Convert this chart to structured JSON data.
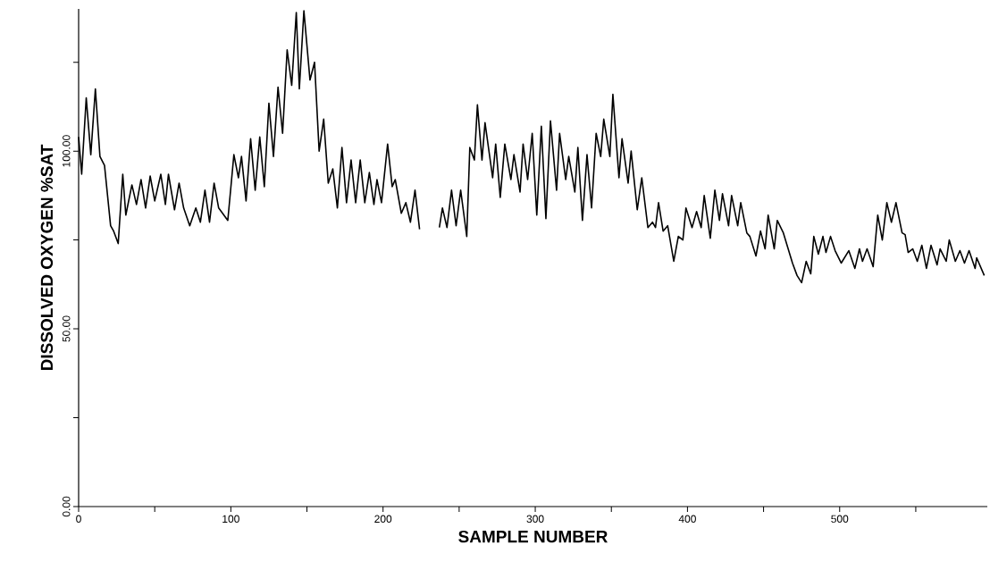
{
  "chart_data": {
    "type": "line",
    "xlabel": "SAMPLE NUMBER",
    "ylabel": "DISSOLVED OXYGEN %SAT",
    "xlim": [
      0,
      597
    ],
    "ylim": [
      0,
      140
    ],
    "xticks": [
      0,
      {
        "value": 50,
        "label": null
      },
      100,
      {
        "value": 150,
        "label": null
      },
      200,
      {
        "value": 250,
        "label": null
      },
      300,
      {
        "value": 350,
        "label": null
      },
      400,
      {
        "value": 450,
        "label": null
      },
      500,
      {
        "value": 550,
        "label": null
      }
    ],
    "yticks": [
      {
        "value": 0,
        "label": "0.00"
      },
      {
        "value": 25,
        "label": null
      },
      {
        "value": 50,
        "label": "50.00"
      },
      {
        "value": 75,
        "label": null
      },
      {
        "value": 100,
        "label": "100.00"
      },
      {
        "value": 125,
        "label": null
      }
    ],
    "grid": false,
    "marker": "none",
    "line_style": "solid",
    "series": [
      {
        "color": "#000000",
        "x": [
          0,
          2,
          5,
          8,
          11,
          14,
          17,
          21,
          23,
          26,
          29,
          31,
          35,
          38,
          41,
          44,
          47,
          50,
          54,
          57,
          59,
          63,
          66,
          69,
          73,
          77,
          80,
          83,
          86,
          89,
          92,
          98,
          102,
          105,
          107,
          110,
          113,
          116,
          119,
          122,
          125,
          128,
          131,
          134,
          137,
          140,
          143,
          145,
          148,
          152,
          155,
          158,
          161,
          164,
          167,
          170,
          173,
          176,
          179,
          182,
          185,
          188,
          191,
          194,
          196,
          199,
          203,
          206,
          208,
          212,
          215,
          218,
          221,
          224,
          230,
          237,
          239,
          242,
          245,
          248,
          251,
          255,
          257,
          260,
          262,
          265,
          267,
          272,
          274,
          277,
          280,
          284,
          286,
          290,
          292,
          295,
          298,
          301,
          304,
          307,
          310,
          314,
          316,
          320,
          322,
          326,
          328,
          331,
          334,
          337,
          340,
          343,
          345,
          349,
          351,
          355,
          357,
          361,
          363,
          367,
          370,
          374,
          377,
          379,
          381,
          384,
          387,
          391,
          394,
          397,
          399,
          403,
          406,
          409,
          411,
          415,
          418,
          421,
          423,
          427,
          429,
          433,
          435,
          439,
          441,
          445,
          448,
          451,
          453,
          457,
          459,
          463,
          469,
          472,
          475,
          478,
          481,
          483,
          486,
          489,
          491,
          494,
          497,
          501,
          506,
          510,
          513,
          515,
          518,
          522,
          525,
          528,
          531,
          534,
          537,
          541,
          543,
          545,
          548,
          551,
          554,
          557,
          560,
          564,
          566,
          570,
          572,
          576,
          579,
          582,
          585,
          589,
          590,
          595
        ],
        "values": [
          104,
          93.5,
          115,
          99,
          117.5,
          98.5,
          96,
          79,
          77.5,
          74,
          93.5,
          82,
          90.5,
          85,
          92,
          84,
          93,
          86,
          93.5,
          85,
          93.5,
          83.5,
          91,
          84,
          79,
          84,
          80,
          89,
          80,
          91,
          84,
          80.5,
          99,
          92.5,
          98.5,
          86,
          103.5,
          89,
          104,
          90,
          113.5,
          98.5,
          118,
          105,
          128.5,
          118.5,
          139,
          117.5,
          139.5,
          120,
          125,
          100,
          109,
          91,
          95,
          84,
          101,
          85.5,
          97.5,
          85.5,
          97.5,
          85.5,
          94,
          85,
          92,
          85.5,
          102,
          90,
          92,
          82.5,
          85.5,
          80,
          89,
          78,
          null,
          78.5,
          84,
          78.5,
          89,
          79,
          89,
          76,
          101,
          97.5,
          113,
          97.5,
          108,
          92.5,
          102,
          87,
          102,
          92,
          99,
          88.5,
          102,
          92,
          105,
          82,
          107,
          81,
          108.5,
          89,
          105,
          92,
          98.5,
          88.5,
          101,
          80.5,
          99,
          84,
          105,
          98.5,
          109,
          98.5,
          116,
          92.5,
          103.5,
          91,
          100,
          83.5,
          92.5,
          78.5,
          80,
          78.5,
          85.5,
          77.5,
          79,
          69,
          76,
          75,
          84,
          78.5,
          83,
          78.5,
          87.5,
          75.5,
          89,
          80.5,
          88,
          79,
          87.5,
          79,
          85.5,
          77,
          76,
          70.5,
          77.5,
          72.5,
          82,
          72.5,
          80.5,
          77,
          68.5,
          65,
          63,
          69,
          65.5,
          76,
          71,
          76,
          71.5,
          76,
          72,
          68.5,
          72,
          67,
          72.5,
          69,
          72.5,
          67.5,
          82,
          75,
          85.5,
          80,
          85.5,
          77,
          76.5,
          71.5,
          72.5,
          69,
          73.5,
          67,
          73.5,
          68,
          72.5,
          69,
          75,
          69,
          72,
          68.5,
          72,
          67,
          70,
          65
        ]
      }
    ]
  }
}
